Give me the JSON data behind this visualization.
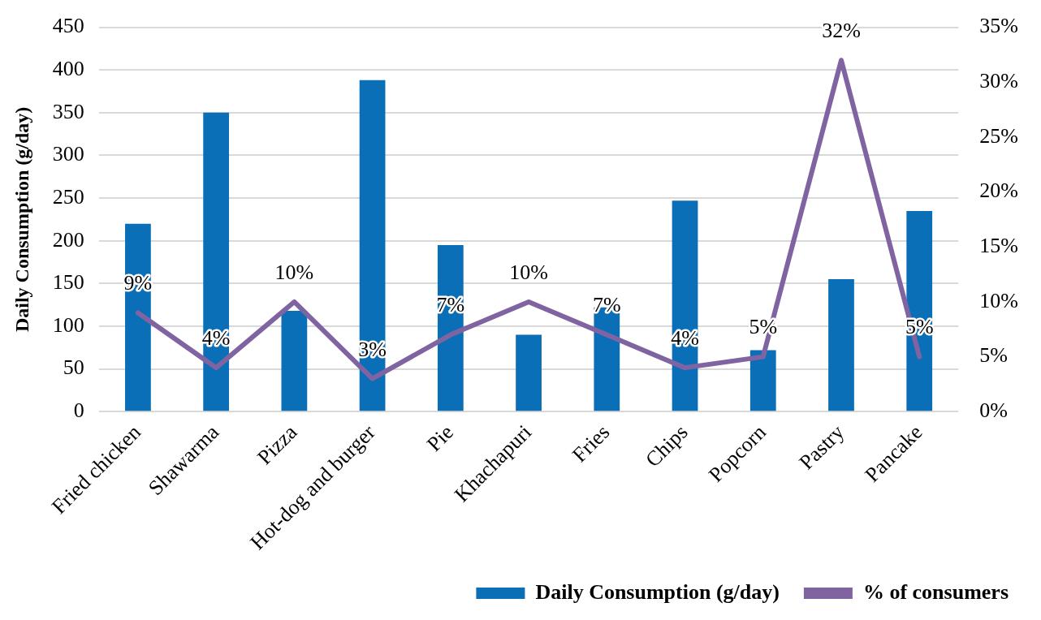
{
  "chart_data": {
    "type": "bar",
    "ylabel": "Daily Consumption (g/day)",
    "categories": [
      "Fried chicken",
      "Shawarma",
      "Pizza",
      "Hot-dog and burger",
      "Pie",
      "Khachapuri",
      "Fries",
      "Chips",
      "Popcorn",
      "Pastry",
      "Pancake"
    ],
    "series": [
      {
        "name": "Daily Consumption (g/day)",
        "color": "#0b6fb8",
        "values": [
          220,
          350,
          118,
          388,
          195,
          90,
          122,
          247,
          72,
          155,
          235
        ]
      },
      {
        "name": "% of consumers",
        "type": "line",
        "axis": "y2",
        "color": "#8064a2",
        "values": [
          9,
          4,
          10,
          3,
          7,
          10,
          7,
          4,
          5,
          32,
          5
        ],
        "value_labels": [
          "9%",
          "4%",
          "10%",
          "3%",
          "7%",
          "10%",
          "7%",
          "4%",
          "5%",
          "32%",
          "5%"
        ]
      }
    ],
    "ylim": [
      0,
      450
    ],
    "yticks": [
      0,
      50,
      100,
      150,
      200,
      250,
      300,
      350,
      400,
      450
    ],
    "y2lim": [
      0,
      35
    ],
    "y2ticks": [
      {
        "value": 0,
        "label": "0%"
      },
      {
        "value": 5,
        "label": "5%"
      },
      {
        "value": 10,
        "label": "10%"
      },
      {
        "value": 15,
        "label": "15%"
      },
      {
        "value": 20,
        "label": "20%"
      },
      {
        "value": 25,
        "label": "25%"
      },
      {
        "value": 30,
        "label": "30%"
      },
      {
        "value": 35,
        "label": "35%"
      }
    ],
    "grid": "y",
    "legend": "bottom",
    "marker": "none",
    "line_style": "solid"
  }
}
